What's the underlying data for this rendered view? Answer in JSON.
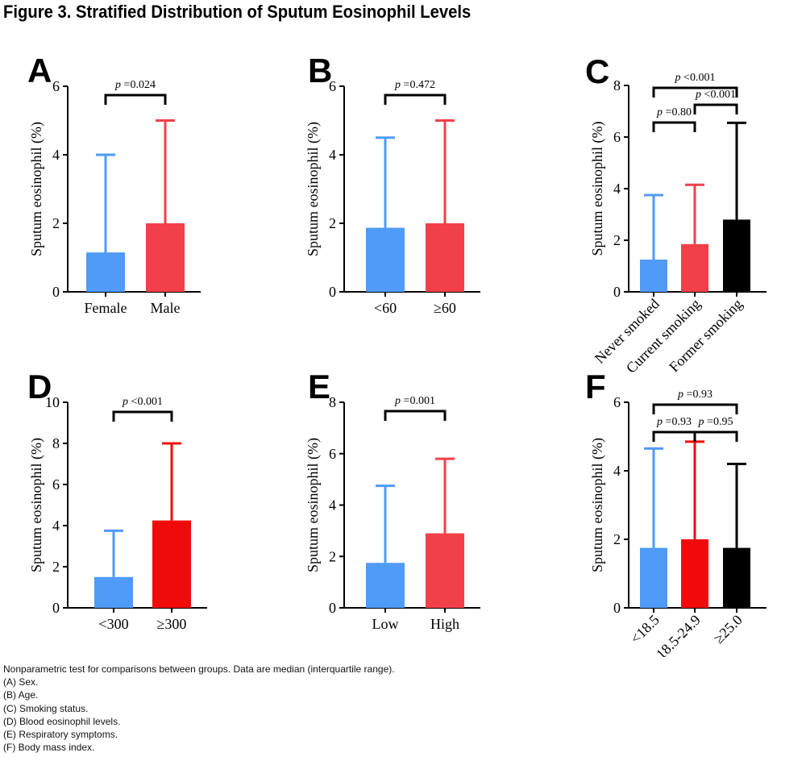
{
  "figure_title": "Figure 3. Stratified Distribution of Sputum Eosinophil Levels",
  "colors": {
    "blue": "#4F9BF7",
    "red": "#F2404A",
    "deep_red": "#F10A0A",
    "black": "#000000"
  },
  "chart_data": [
    {
      "type": "bar",
      "panel": "A",
      "categories": [
        "Female",
        "Male"
      ],
      "values": [
        1.15,
        2.0
      ],
      "errors_upper": [
        4.0,
        5.0
      ],
      "ylabel": "Sputum eosinophil (%)",
      "ylim": [
        0,
        6
      ],
      "yticks": [
        "0",
        "2",
        "4",
        "6"
      ],
      "bar_colors": [
        "blue",
        "red"
      ],
      "comparisons": [
        {
          "label_p": "p",
          "label_value": " =0.024",
          "from": 0,
          "to": 1
        }
      ]
    },
    {
      "type": "bar",
      "panel": "B",
      "categories": [
        "<60",
        "≥60"
      ],
      "values": [
        1.87,
        2.0
      ],
      "errors_upper": [
        4.5,
        5.0
      ],
      "ylabel": "Sputum eosinophil (%)",
      "ylim": [
        0,
        6
      ],
      "yticks": [
        "0",
        "2",
        "4",
        "6"
      ],
      "bar_colors": [
        "blue",
        "red"
      ],
      "comparisons": [
        {
          "label_p": "p",
          "label_value": " =0.472",
          "from": 0,
          "to": 1
        }
      ]
    },
    {
      "type": "bar",
      "panel": "C",
      "categories": [
        "Never smoked",
        "Current smoking",
        "Former smoking"
      ],
      "values": [
        1.25,
        1.85,
        2.8
      ],
      "errors_upper": [
        3.75,
        4.15,
        6.55
      ],
      "ylabel": "Sputum eosinophil (%)",
      "ylim": [
        0,
        8
      ],
      "yticks": [
        "0",
        "2",
        "4",
        "6",
        "8"
      ],
      "bar_colors": [
        "blue",
        "red",
        "black"
      ],
      "rotated_labels": true,
      "comparisons": [
        {
          "label_p": "p",
          "label_value": " <0.001",
          "from": 0,
          "to": 2
        },
        {
          "label_p": "p",
          "label_value": " <0.001",
          "from": 1,
          "to": 2
        },
        {
          "label_p": "p",
          "label_value": " =0.80",
          "from": 0,
          "to": 1
        }
      ]
    },
    {
      "type": "bar",
      "panel": "D",
      "categories": [
        "<300",
        "≥300"
      ],
      "values": [
        1.5,
        4.25
      ],
      "errors_upper": [
        3.75,
        8.0
      ],
      "ylabel": "Sputum eosinophil (%)",
      "ylim": [
        0,
        10
      ],
      "yticks": [
        "0",
        "2",
        "4",
        "6",
        "8",
        "10"
      ],
      "bar_colors": [
        "blue",
        "deep_red"
      ],
      "comparisons": [
        {
          "label_p": "p",
          "label_value": " <0.001",
          "from": 0,
          "to": 1
        }
      ]
    },
    {
      "type": "bar",
      "panel": "E",
      "categories": [
        "Low",
        "High"
      ],
      "values": [
        1.75,
        2.9
      ],
      "errors_upper": [
        4.75,
        5.8
      ],
      "ylabel": "Sputum eosinophil (%)",
      "ylim": [
        0,
        8
      ],
      "yticks": [
        "0",
        "2",
        "4",
        "6",
        "8"
      ],
      "bar_colors": [
        "blue",
        "red"
      ],
      "comparisons": [
        {
          "label_p": "p",
          "label_value": " =0.001",
          "from": 0,
          "to": 1
        }
      ]
    },
    {
      "type": "bar",
      "panel": "F",
      "categories": [
        "<18.5",
        "18.5-24.9",
        "≥25.0"
      ],
      "values": [
        1.75,
        2.0,
        1.75
      ],
      "errors_upper": [
        4.65,
        4.85,
        4.2
      ],
      "ylabel": "Sputum eosinophil (%)",
      "ylim": [
        0,
        6
      ],
      "yticks": [
        "0",
        "2",
        "4",
        "6"
      ],
      "bar_colors": [
        "blue",
        "deep_red",
        "black"
      ],
      "rotated_labels": true,
      "comparisons": [
        {
          "label_p": "p",
          "label_value": " =0.93",
          "from": 0,
          "to": 2
        },
        {
          "label_p": "p",
          "label_value": " =0.93",
          "from": 0,
          "to": 1
        },
        {
          "label_p": "p",
          "label_value": " =0.95",
          "from": 1,
          "to": 2
        }
      ]
    }
  ],
  "footnotes": [
    "Nonparametric test for comparisons between groups. Data are median (interquartile range).",
    "(A) Sex.",
    "(B) Age.",
    "(C) Smoking status.",
    "(D) Blood eosinophil levels.",
    "(E) Respiratory symptoms.",
    "(F) Body mass index."
  ]
}
